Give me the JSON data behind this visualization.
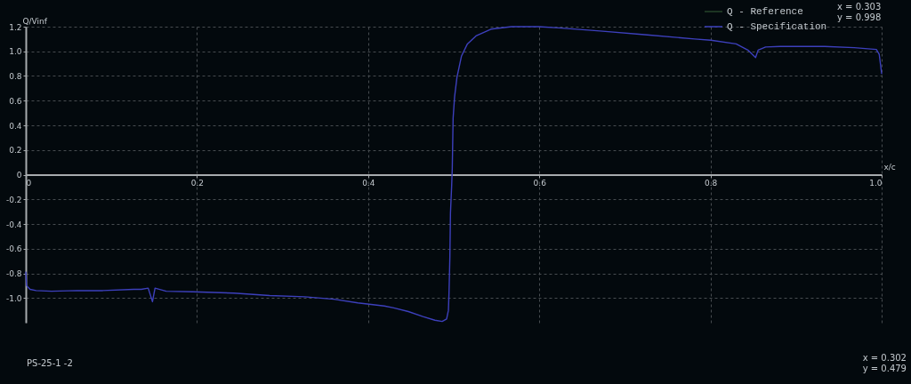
{
  "chart_data": {
    "type": "line",
    "xlabel": "x/c",
    "ylabel": "Q/Vinf",
    "x": [
      0,
      0.001,
      0.005,
      0.012,
      0.03,
      0.06,
      0.09,
      0.126,
      0.135,
      0.143,
      0.148,
      0.151,
      0.164,
      0.195,
      0.243,
      0.285,
      0.326,
      0.36,
      0.388,
      0.419,
      0.43,
      0.447,
      0.464,
      0.478,
      0.4865,
      0.4917,
      0.4938,
      0.4945,
      0.4955,
      0.4962,
      0.4976,
      0.4983,
      0.4993,
      0.501,
      0.5038,
      0.509,
      0.516,
      0.526,
      0.5435,
      0.5676,
      0.599,
      0.623,
      0.671,
      0.723,
      0.7816,
      0.8005,
      0.83,
      0.8437,
      0.8527,
      0.8557,
      0.8644,
      0.8816,
      0.9334,
      0.9679,
      0.9938,
      0.9972,
      1.0
    ],
    "series": [
      {
        "name": "Q - Reference",
        "color": "#26432a",
        "values": [
          null,
          null,
          null,
          null,
          null,
          null,
          null,
          null,
          null,
          null,
          null,
          null,
          null,
          null,
          null,
          null,
          null,
          null,
          null,
          null,
          null,
          null,
          null,
          null,
          null,
          null,
          null,
          null,
          null,
          null,
          null,
          null,
          null,
          null,
          null,
          null,
          null,
          null,
          null,
          null,
          null,
          null,
          null,
          null,
          null,
          null,
          null,
          null,
          null,
          null,
          null,
          null,
          null,
          null,
          null,
          null,
          null
        ]
      },
      {
        "name": "Q - Specification",
        "color": "#3d40bc",
        "values": [
          -0.79,
          -0.9,
          -0.93,
          -0.94,
          -0.945,
          -0.94,
          -0.94,
          -0.93,
          -0.93,
          -0.92,
          -1.03,
          -0.92,
          -0.945,
          -0.95,
          -0.96,
          -0.98,
          -0.99,
          -1.01,
          -1.04,
          -1.065,
          -1.08,
          -1.11,
          -1.15,
          -1.18,
          -1.19,
          -1.17,
          -1.1,
          -0.96,
          -0.67,
          -0.31,
          -0.09,
          0.05,
          0.46,
          0.63,
          0.79,
          0.96,
          1.06,
          1.125,
          1.18,
          1.2,
          1.2,
          1.19,
          1.165,
          1.135,
          1.1,
          1.09,
          1.06,
          1.01,
          0.95,
          1.01,
          1.035,
          1.04,
          1.04,
          1.03,
          1.015,
          0.975,
          0.82
        ]
      }
    ],
    "xlim": [
      0,
      1
    ],
    "ylim": [
      -1.2,
      1.2
    ],
    "xticks": [
      0,
      0.2,
      0.4,
      0.6,
      0.8,
      {
        "value": 1,
        "label": "1.0"
      }
    ],
    "yticks": [
      1.2,
      {
        "value": 1,
        "label": "1.0"
      },
      0.8,
      0.6,
      0.4,
      0.2,
      0,
      -0.2,
      -0.4,
      -0.6,
      -0.8,
      {
        "value": -1,
        "label": "-1.0"
      }
    ],
    "grid": true,
    "legend": "top right",
    "annotations": [
      "x = 0.303",
      "y = 0.998",
      "PS-25-1 -2",
      "x = 0.302",
      "y = 0.479"
    ]
  }
}
